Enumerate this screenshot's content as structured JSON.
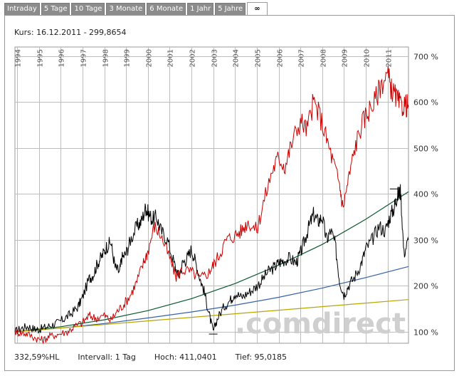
{
  "tabs": [
    {
      "label": "Intraday",
      "active": false
    },
    {
      "label": "5 Tage",
      "active": false
    },
    {
      "label": "10 Tage",
      "active": false
    },
    {
      "label": "3 Monate",
      "active": false
    },
    {
      "label": "6 Monate",
      "active": false
    },
    {
      "label": "1 Jahr",
      "active": false
    },
    {
      "label": "5 Jahre",
      "active": false
    },
    {
      "label": "∞",
      "active": true
    }
  ],
  "kurs_label": "Kurs: 16.12.2011 - 299,8654",
  "footer": {
    "change": "332,59%HL",
    "interval": "Intervall: 1 Tag",
    "high": "Hoch: 411,0401",
    "low": "Tief: 95,0185"
  },
  "watermark": ".comdirect",
  "colors": {
    "red_series": "#cc0000",
    "black_series": "#000000",
    "green_trend": "#0b5a2e",
    "blue_trend": "#3462a8",
    "yellow_trend": "#b8a600",
    "grid": "#bdbdbd",
    "watermark": "#cfcfcf"
  },
  "chart_data": {
    "type": "line",
    "title": "",
    "xlabel": "",
    "ylabel": "",
    "x_range": [
      1993.9,
      2011.96
    ],
    "ylim": [
      75,
      720
    ],
    "x_tick_labels": [
      "1994",
      "1995",
      "1996",
      "1997",
      "1998",
      "1999",
      "2000",
      "2001",
      "2002",
      "2003",
      "2004",
      "2005",
      "2006",
      "2007",
      "2008",
      "2009",
      "2010",
      "2011"
    ],
    "x_ticks": [
      1994,
      1995,
      1996,
      1997,
      1998,
      1999,
      2000,
      2001,
      2002,
      2003,
      2004,
      2005,
      2006,
      2007,
      2008,
      2009,
      2010,
      2011
    ],
    "y_ticks": [
      100,
      200,
      300,
      400,
      500,
      600,
      700
    ],
    "y_tick_labels": [
      "100 %",
      "200 %",
      "300 %",
      "400 %",
      "500 %",
      "600 %",
      "700 %"
    ],
    "series": [
      {
        "name": "black",
        "color": "#000000",
        "x": [
          1993.9,
          1994.2,
          1994.5,
          1994.8,
          1995.0,
          1995.3,
          1995.6,
          1995.9,
          1996.2,
          1996.5,
          1996.8,
          1997.0,
          1997.3,
          1997.5,
          1997.7,
          1997.9,
          1998.1,
          1998.3,
          1998.5,
          1998.7,
          1998.8,
          1999.0,
          1999.2,
          1999.5,
          1999.7,
          1999.9,
          2000.0,
          2000.2,
          2000.4,
          2000.6,
          2000.9,
          2001.2,
          2001.4,
          2001.6,
          2001.8,
          2002.0,
          2002.2,
          2002.4,
          2002.6,
          2002.8,
          2003.0,
          2003.2,
          2003.5,
          2003.8,
          2004.0,
          2004.3,
          2004.6,
          2004.9,
          2005.2,
          2005.5,
          2005.8,
          2006.0,
          2006.2,
          2006.5,
          2006.8,
          2007.0,
          2007.2,
          2007.4,
          2007.6,
          2007.8,
          2008.0,
          2008.2,
          2008.4,
          2008.6,
          2008.8,
          2009.0,
          2009.2,
          2009.5,
          2009.8,
          2010.0,
          2010.3,
          2010.6,
          2010.9,
          2011.1,
          2011.3,
          2011.4,
          2011.5,
          2011.6,
          2011.75,
          2011.96
        ],
        "y": [
          100,
          108,
          112,
          106,
          105,
          110,
          115,
          120,
          130,
          140,
          155,
          175,
          215,
          225,
          250,
          265,
          285,
          295,
          240,
          230,
          260,
          270,
          300,
          330,
          340,
          370,
          360,
          345,
          350,
          320,
          300,
          250,
          220,
          250,
          260,
          280,
          250,
          215,
          185,
          140,
          100,
          130,
          155,
          170,
          185,
          175,
          185,
          195,
          210,
          230,
          240,
          250,
          255,
          260,
          250,
          270,
          300,
          330,
          355,
          340,
          350,
          300,
          320,
          290,
          210,
          180,
          200,
          220,
          250,
          280,
          300,
          330,
          320,
          350,
          370,
          390,
          400,
          405,
          270,
          300
        ]
      },
      {
        "name": "red",
        "color": "#cc0000",
        "x": [
          1993.9,
          1994.2,
          1994.5,
          1994.9,
          1995.2,
          1995.5,
          1995.9,
          1996.3,
          1996.6,
          1997.0,
          1997.3,
          1997.6,
          1998.0,
          1998.3,
          1998.6,
          1998.9,
          1999.2,
          1999.5,
          1999.8,
          2000.0,
          2000.3,
          2000.6,
          2001.0,
          2001.3,
          2001.6,
          2002.0,
          2002.4,
          2002.8,
          2003.0,
          2003.3,
          2003.6,
          2004.0,
          2004.3,
          2004.6,
          2005.0,
          2005.3,
          2005.7,
          2006.0,
          2006.3,
          2006.6,
          2007.0,
          2007.3,
          2007.6,
          2007.9,
          2008.2,
          2008.5,
          2008.8,
          2008.95,
          2009.2,
          2009.5,
          2009.8,
          2010.1,
          2010.4,
          2010.7,
          2011.0,
          2011.2,
          2011.4,
          2011.6,
          2011.8,
          2011.96
        ],
        "y": [
          100,
          98,
          95,
          85,
          82,
          90,
          95,
          100,
          110,
          120,
          135,
          130,
          135,
          125,
          145,
          160,
          180,
          210,
          250,
          275,
          330,
          310,
          260,
          220,
          235,
          230,
          215,
          230,
          245,
          270,
          300,
          310,
          320,
          340,
          320,
          380,
          450,
          480,
          460,
          510,
          560,
          540,
          600,
          570,
          520,
          470,
          420,
          370,
          430,
          500,
          550,
          580,
          600,
          640,
          660,
          625,
          610,
          590,
          595,
          590
        ]
      }
    ],
    "trend_lines": [
      {
        "name": "green",
        "color": "#0b5a2e",
        "x": [
          1993.9,
          1996,
          1998,
          2000,
          2002,
          2004,
          2006,
          2008,
          2010,
          2011.96
        ],
        "y": [
          100,
          111,
          126,
          146,
          172,
          205,
          245,
          290,
          345,
          405
        ]
      },
      {
        "name": "blue",
        "color": "#3462a8",
        "x": [
          1993.9,
          1996,
          1998,
          2000,
          2002,
          2004,
          2006,
          2008,
          2010,
          2011.96
        ],
        "y": [
          100,
          108,
          118,
          130,
          143,
          158,
          175,
          195,
          218,
          242
        ]
      },
      {
        "name": "yellow",
        "color": "#b8a600",
        "x": [
          1993.9,
          2011.96
        ],
        "y": [
          100,
          170
        ]
      }
    ],
    "grid": true,
    "legend": "none"
  }
}
